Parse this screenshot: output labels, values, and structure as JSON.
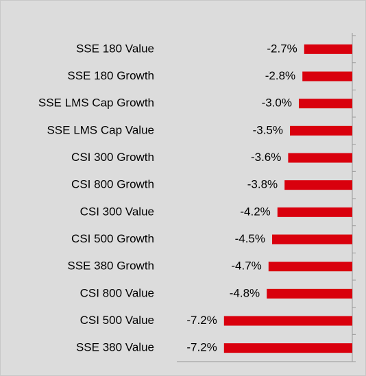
{
  "chart_data": {
    "type": "bar",
    "orientation": "horizontal",
    "categories": [
      "SSE 180 Value",
      "SSE 180 Growth",
      "SSE LMS Cap Growth",
      "SSE LMS Cap Value",
      "CSI 300 Growth",
      "CSI 800 Growth",
      "CSI 300 Value",
      "CSI 500 Growth",
      "SSE 380 Growth",
      "CSI 800 Value",
      "CSI 500 Value",
      "SSE 380 Value"
    ],
    "values": [
      -2.7,
      -2.8,
      -3.0,
      -3.5,
      -3.6,
      -3.8,
      -4.2,
      -4.5,
      -4.7,
      -4.8,
      -7.2,
      -7.2
    ],
    "value_labels": [
      "-2.7%",
      "-2.8%",
      "-3.0%",
      "-3.5%",
      "-3.6%",
      "-3.8%",
      "-4.2%",
      "-4.5%",
      "-4.7%",
      "-4.8%",
      "-7.2%",
      "-7.2%"
    ],
    "color": "#d9000d",
    "xlim": [
      -10,
      0
    ]
  }
}
